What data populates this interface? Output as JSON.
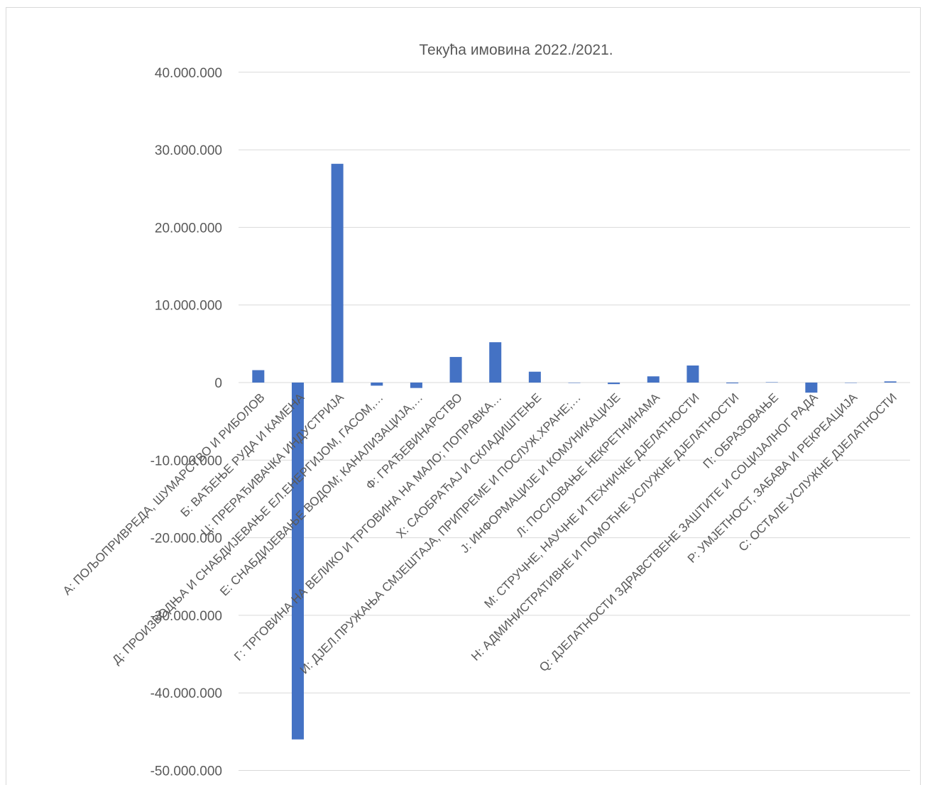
{
  "chart_data": {
    "type": "bar",
    "title": "Текућа имовина 2022./2021.",
    "xlabel": "",
    "ylabel": "",
    "ylim": [
      -50000000,
      40000000
    ],
    "yticks": [
      40000000,
      30000000,
      20000000,
      10000000,
      0,
      -10000000,
      -20000000,
      -30000000,
      -40000000,
      -50000000
    ],
    "ytick_labels": [
      "40.000.000",
      "30.000.000",
      "20.000.000",
      "10.000.000",
      "0",
      "-10.000.000",
      "-20.000.000",
      "-30.000.000",
      "-40.000.000",
      "-50.000.000"
    ],
    "grid": true,
    "legend": "none",
    "bar_color": "#4472c4",
    "categories": [
      "А: ПОЉОПРИВРЕДА, ШУМАРСТВО И РИБОЛОВ",
      "Б: ВАЂЕЊЕ РУДА И КАМЕНА",
      "Ц: ПРЕРАЂИВАЧКА ИНДУСТРИЈА",
      "Д: ПРОИЗВОДЊА И СНАБДИЈЕВАЊЕ ЕЛ.ЕНЕРГИЈОМ, ГАСОМ,…",
      "Е: СНАБДИЈЕВАЊЕ ВОДОМ; КАНАЛИЗАЦИЈА,…",
      "Ф: ГРАЂЕВИНАРСТВО",
      "Г: ТРГОВИНА НА ВЕЛИКО И ТРГОВИНА НА МАЛО; ПОПРАВКА…",
      "Х: САОБРАЋАЈ И СКЛАДИШТЕЊЕ",
      "И: ДЈЕЛ.ПРУЖАЊА СМЈЕШТАЈА, ПРИПРЕМЕ И ПОСЛУЖ.ХРАНЕ;…",
      "Ј: ИНФОРМАЦИЈЕ И КОМУНИКАЦИЈЕ",
      "Л: ПОСЛОВАЊЕ НЕКРЕТНИНАМА",
      "М: СТРУЧНЕ, НАУЧНЕ И ТЕХНИЧКЕ ДЈЕЛАТНОСТИ",
      "Н: АДМИНИСТРАТИВНЕ И ПОМОЋНЕ УСЛУЖНЕ ДЈЕЛАТНОСТИ",
      "П: ОБРАЗОВАЊЕ",
      "Q: ДЈЕЛАТНОСТИ ЗДРАВСТВЕНЕ ЗАШТИТЕ И СОЦИЈАЛНОГ РАДА",
      "Р: УМЈЕТНОСТ, ЗАБАВА И РЕКРЕАЦИЈА",
      "С: ОСТАЛЕ УСЛУЖНЕ ДЈЕЛАТНОСТИ"
    ],
    "values": [
      1600000,
      -46000000,
      28200000,
      -400000,
      -700000,
      3300000,
      5200000,
      1400000,
      -50000,
      -200000,
      800000,
      2200000,
      -100000,
      50000,
      -1300000,
      0,
      150000
    ]
  }
}
